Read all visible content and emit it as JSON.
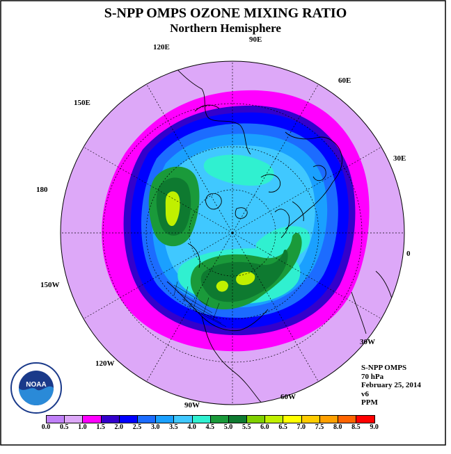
{
  "title": "S-NPP OMPS OZONE MIXING RATIO",
  "subtitle": "Northern Hemisphere",
  "longitude_labels": [
    {
      "name": "lon-90e",
      "text": "90E"
    },
    {
      "name": "lon-60e",
      "text": "60E"
    },
    {
      "name": "lon-30e",
      "text": "30E"
    },
    {
      "name": "lon-0",
      "text": "0"
    },
    {
      "name": "lon-30w",
      "text": "30W"
    },
    {
      "name": "lon-60w",
      "text": "60W"
    },
    {
      "name": "lon-90w",
      "text": "90W"
    },
    {
      "name": "lon-120w",
      "text": "120W"
    },
    {
      "name": "lon-150w",
      "text": "150W"
    },
    {
      "name": "lon-180",
      "text": "180"
    },
    {
      "name": "lon-150e",
      "text": "150E"
    },
    {
      "name": "lon-120e",
      "text": "120E"
    }
  ],
  "info": {
    "instrument": "S-NPP OMPS",
    "pressure_level": "70 hPa",
    "date": "February 25, 2014",
    "version": "v6",
    "units": "PPM"
  },
  "logo_text": "NOAA",
  "colorbar": {
    "ticks": [
      "0.0",
      "0.5",
      "1.0",
      "1.5",
      "2.0",
      "2.5",
      "3.0",
      "3.5",
      "4.0",
      "4.5",
      "5.0",
      "5.5",
      "6.0",
      "6.5",
      "7.0",
      "7.5",
      "8.0",
      "8.5",
      "9.0"
    ],
    "colors": [
      "#c080f8",
      "#dda8f8",
      "#ff00ff",
      "#3300cc",
      "#0000ff",
      "#1c6cff",
      "#1aa0ff",
      "#40c8ff",
      "#30f0d0",
      "#1a9a3a",
      "#0e7a30",
      "#80d000",
      "#c0f000",
      "#ffff00",
      "#ffcc00",
      "#ffa000",
      "#ff6400",
      "#ff0000",
      "#a05020"
    ]
  },
  "map_colors": {
    "background": "#dda8f8",
    "ring_magenta": "#ff00ff",
    "ring_dark_blue": "#0000ff",
    "ring_indigo": "#3300cc",
    "blue_mid": "#1c6cff",
    "blue_light": "#1aa0ff",
    "cyan": "#40c8ff",
    "aqua": "#30f0d0",
    "green": "#1a9a3a",
    "dark_green": "#0e7a30",
    "lime": "#c0f000"
  }
}
